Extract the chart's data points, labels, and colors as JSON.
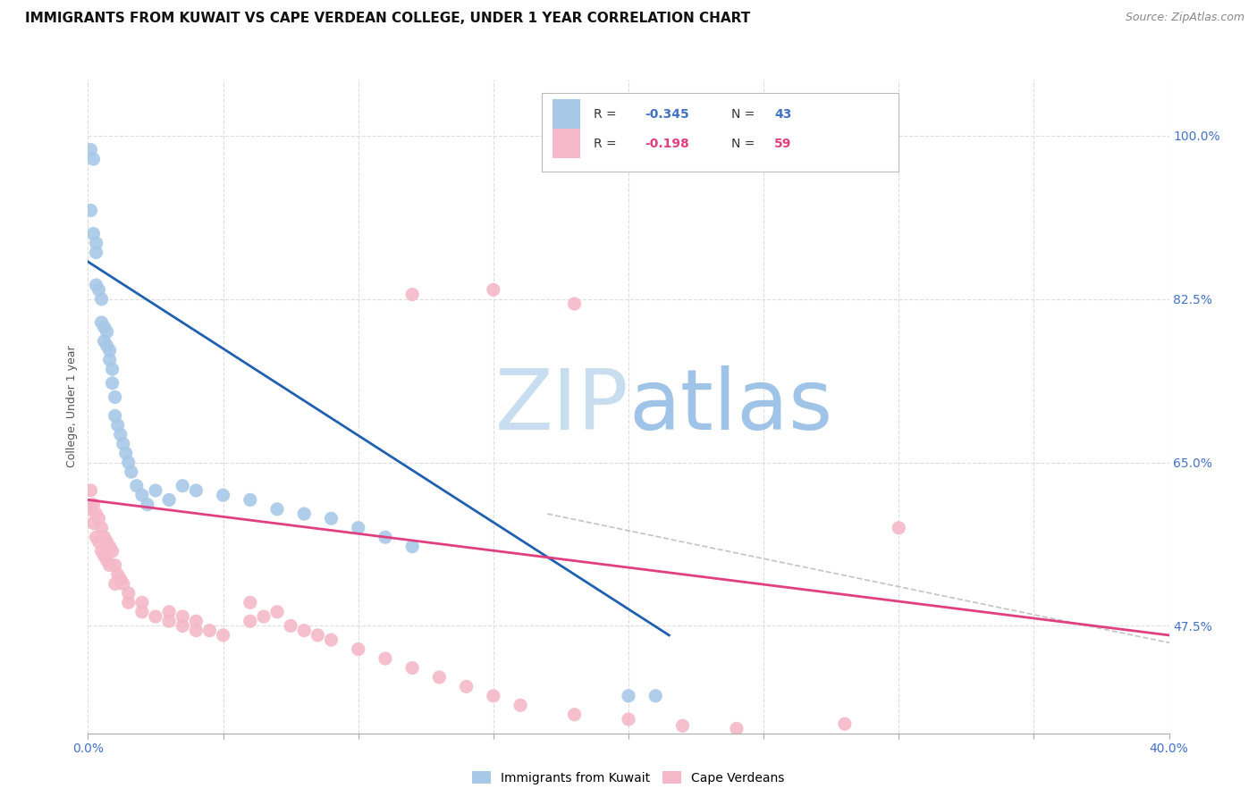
{
  "title": "IMMIGRANTS FROM KUWAIT VS CAPE VERDEAN COLLEGE, UNDER 1 YEAR CORRELATION CHART",
  "source": "Source: ZipAtlas.com",
  "ylabel": "College, Under 1 year",
  "right_ytick_labels": [
    "100.0%",
    "82.5%",
    "65.0%",
    "47.5%"
  ],
  "right_ytick_values": [
    1.0,
    0.825,
    0.65,
    0.475
  ],
  "xmin": 0.0,
  "xmax": 0.4,
  "ymin": 0.36,
  "ymax": 1.06,
  "legend_r_blue": "R = -0.345",
  "legend_n_blue": "N = 43",
  "legend_r_pink": "R = -0.198",
  "legend_n_pink": "N = 59",
  "color_blue": "#a8c8e8",
  "color_pink": "#f4b8c8",
  "color_blue_line": "#2060b0",
  "color_pink_line": "#e04080",
  "color_watermark_zip": "#c8ddf0",
  "color_watermark_atlas": "#a0c4e8",
  "blue_scatter_x": [
    0.001,
    0.002,
    0.001,
    0.002,
    0.003,
    0.003,
    0.003,
    0.004,
    0.005,
    0.005,
    0.006,
    0.006,
    0.007,
    0.007,
    0.008,
    0.008,
    0.009,
    0.009,
    0.01,
    0.01,
    0.011,
    0.012,
    0.013,
    0.014,
    0.015,
    0.016,
    0.018,
    0.02,
    0.022,
    0.025,
    0.03,
    0.035,
    0.04,
    0.05,
    0.06,
    0.07,
    0.08,
    0.09,
    0.1,
    0.11,
    0.12,
    0.2,
    0.21
  ],
  "blue_scatter_y": [
    0.985,
    0.975,
    0.92,
    0.895,
    0.885,
    0.875,
    0.84,
    0.835,
    0.825,
    0.8,
    0.795,
    0.78,
    0.79,
    0.775,
    0.77,
    0.76,
    0.75,
    0.735,
    0.72,
    0.7,
    0.69,
    0.68,
    0.67,
    0.66,
    0.65,
    0.64,
    0.625,
    0.615,
    0.605,
    0.62,
    0.61,
    0.625,
    0.62,
    0.615,
    0.61,
    0.6,
    0.595,
    0.59,
    0.58,
    0.57,
    0.56,
    0.4,
    0.4
  ],
  "pink_scatter_x": [
    0.001,
    0.001,
    0.002,
    0.002,
    0.003,
    0.003,
    0.004,
    0.004,
    0.005,
    0.005,
    0.006,
    0.006,
    0.007,
    0.007,
    0.008,
    0.008,
    0.009,
    0.01,
    0.01,
    0.011,
    0.012,
    0.013,
    0.015,
    0.015,
    0.02,
    0.02,
    0.025,
    0.03,
    0.03,
    0.035,
    0.035,
    0.04,
    0.04,
    0.045,
    0.05,
    0.06,
    0.06,
    0.065,
    0.07,
    0.075,
    0.08,
    0.085,
    0.09,
    0.1,
    0.11,
    0.12,
    0.13,
    0.14,
    0.15,
    0.16,
    0.18,
    0.2,
    0.22,
    0.24,
    0.28,
    0.12,
    0.15,
    0.18,
    0.3
  ],
  "pink_scatter_y": [
    0.62,
    0.6,
    0.605,
    0.585,
    0.595,
    0.57,
    0.59,
    0.565,
    0.58,
    0.555,
    0.57,
    0.55,
    0.565,
    0.545,
    0.56,
    0.54,
    0.555,
    0.54,
    0.52,
    0.53,
    0.525,
    0.52,
    0.51,
    0.5,
    0.5,
    0.49,
    0.485,
    0.48,
    0.49,
    0.475,
    0.485,
    0.47,
    0.48,
    0.47,
    0.465,
    0.48,
    0.5,
    0.485,
    0.49,
    0.475,
    0.47,
    0.465,
    0.46,
    0.45,
    0.44,
    0.43,
    0.42,
    0.41,
    0.4,
    0.39,
    0.38,
    0.375,
    0.368,
    0.365,
    0.37,
    0.83,
    0.835,
    0.82,
    0.58
  ],
  "blue_line_x": [
    0.0,
    0.215
  ],
  "blue_line_y": [
    0.865,
    0.465
  ],
  "pink_line_x": [
    0.0,
    0.4
  ],
  "pink_line_y": [
    0.61,
    0.465
  ],
  "dashed_line_x": [
    0.17,
    0.52
  ],
  "dashed_line_y": [
    0.595,
    0.385
  ],
  "grid_color": "#dddddd",
  "title_fontsize": 11,
  "source_fontsize": 9
}
